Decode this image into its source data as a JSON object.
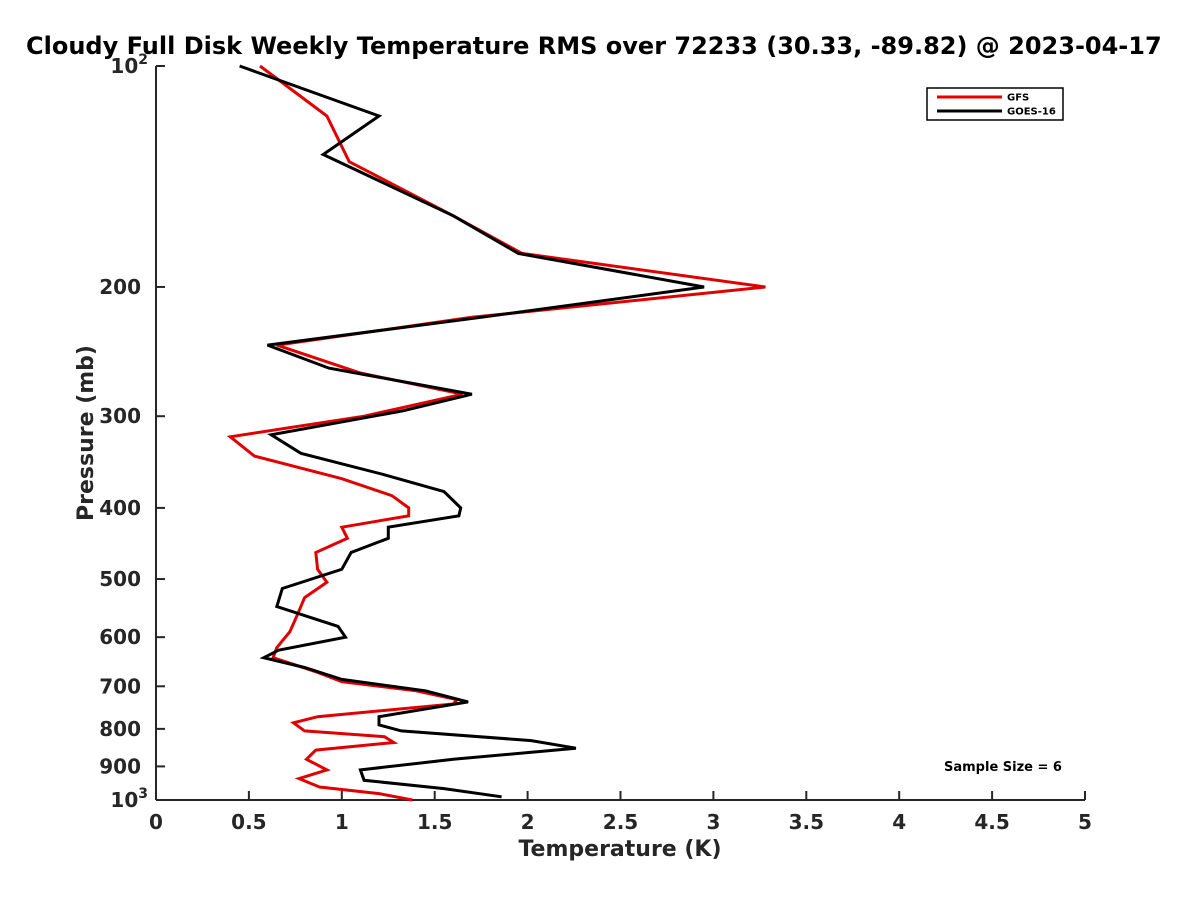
{
  "chart_data": {
    "type": "line",
    "title": "Cloudy Full Disk Weekly Temperature RMS over 72233 (30.33, -89.82) @ 2023-04-17",
    "xlabel": "Temperature (K)",
    "ylabel": "Pressure (mb)",
    "xlim": [
      0,
      5
    ],
    "ylim": [
      100,
      1000
    ],
    "yscale": "log",
    "y_reversed": true,
    "grid": false,
    "legend_position": "top-right",
    "x_ticks": [
      "0",
      "0.5",
      "1",
      "1.5",
      "2",
      "2.5",
      "3",
      "3.5",
      "4",
      "4.5",
      "5"
    ],
    "y_ticks": [
      {
        "value": 100,
        "label": "10",
        "sup": "2"
      },
      {
        "value": 200,
        "label": "200",
        "sup": ""
      },
      {
        "value": 300,
        "label": "300",
        "sup": ""
      },
      {
        "value": 400,
        "label": "400",
        "sup": ""
      },
      {
        "value": 500,
        "label": "500",
        "sup": ""
      },
      {
        "value": 600,
        "label": "600",
        "sup": ""
      },
      {
        "value": 700,
        "label": "700",
        "sup": ""
      },
      {
        "value": 800,
        "label": "800",
        "sup": ""
      },
      {
        "value": 900,
        "label": "900",
        "sup": ""
      },
      {
        "value": 1000,
        "label": "10",
        "sup": "3"
      }
    ],
    "annotation": "Sample Size = 6",
    "series": [
      {
        "name": "GFS",
        "color": "#e00000",
        "points": [
          [
            0.56,
            100
          ],
          [
            0.92,
            117
          ],
          [
            1.04,
            135
          ],
          [
            1.6,
            160
          ],
          [
            1.97,
            180
          ],
          [
            3.28,
            200
          ],
          [
            1.7,
            220
          ],
          [
            0.65,
            240
          ],
          [
            1.1,
            262
          ],
          [
            1.65,
            280
          ],
          [
            1.12,
            300
          ],
          [
            0.4,
            320
          ],
          [
            0.53,
            340
          ],
          [
            1.0,
            365
          ],
          [
            1.27,
            385
          ],
          [
            1.36,
            400
          ],
          [
            1.36,
            410
          ],
          [
            1.0,
            425
          ],
          [
            1.03,
            440
          ],
          [
            0.86,
            460
          ],
          [
            0.87,
            485
          ],
          [
            0.92,
            505
          ],
          [
            0.8,
            530
          ],
          [
            0.76,
            560
          ],
          [
            0.72,
            590
          ],
          [
            0.65,
            620
          ],
          [
            0.63,
            640
          ],
          [
            0.87,
            670
          ],
          [
            1.0,
            690
          ],
          [
            1.4,
            710
          ],
          [
            1.62,
            730
          ],
          [
            1.6,
            740
          ],
          [
            0.87,
            770
          ],
          [
            0.74,
            785
          ],
          [
            0.8,
            805
          ],
          [
            1.23,
            820
          ],
          [
            1.28,
            835
          ],
          [
            0.86,
            855
          ],
          [
            0.81,
            880
          ],
          [
            0.92,
            910
          ],
          [
            0.77,
            935
          ],
          [
            0.88,
            960
          ],
          [
            1.2,
            980
          ],
          [
            1.38,
            1000
          ]
        ]
      },
      {
        "name": "GOES-16",
        "color": "#000000",
        "points": [
          [
            0.45,
            100
          ],
          [
            1.2,
            117
          ],
          [
            0.9,
            132
          ],
          [
            1.6,
            160
          ],
          [
            1.95,
            180
          ],
          [
            2.95,
            200
          ],
          [
            1.75,
            220
          ],
          [
            0.6,
            240
          ],
          [
            0.93,
            258
          ],
          [
            1.7,
            280
          ],
          [
            1.33,
            295
          ],
          [
            0.62,
            318
          ],
          [
            0.78,
            337
          ],
          [
            1.22,
            360
          ],
          [
            1.55,
            380
          ],
          [
            1.64,
            400
          ],
          [
            1.63,
            410
          ],
          [
            1.25,
            425
          ],
          [
            1.25,
            440
          ],
          [
            1.05,
            460
          ],
          [
            1.0,
            485
          ],
          [
            0.68,
            515
          ],
          [
            0.65,
            545
          ],
          [
            0.98,
            580
          ],
          [
            1.02,
            600
          ],
          [
            0.66,
            625
          ],
          [
            0.58,
            640
          ],
          [
            0.8,
            660
          ],
          [
            1.0,
            685
          ],
          [
            1.45,
            710
          ],
          [
            1.68,
            735
          ],
          [
            1.2,
            770
          ],
          [
            1.2,
            790
          ],
          [
            1.32,
            805
          ],
          [
            2.02,
            830
          ],
          [
            2.26,
            850
          ],
          [
            1.6,
            880
          ],
          [
            1.1,
            910
          ],
          [
            1.12,
            940
          ],
          [
            1.55,
            965
          ],
          [
            1.86,
            990
          ]
        ]
      }
    ]
  }
}
